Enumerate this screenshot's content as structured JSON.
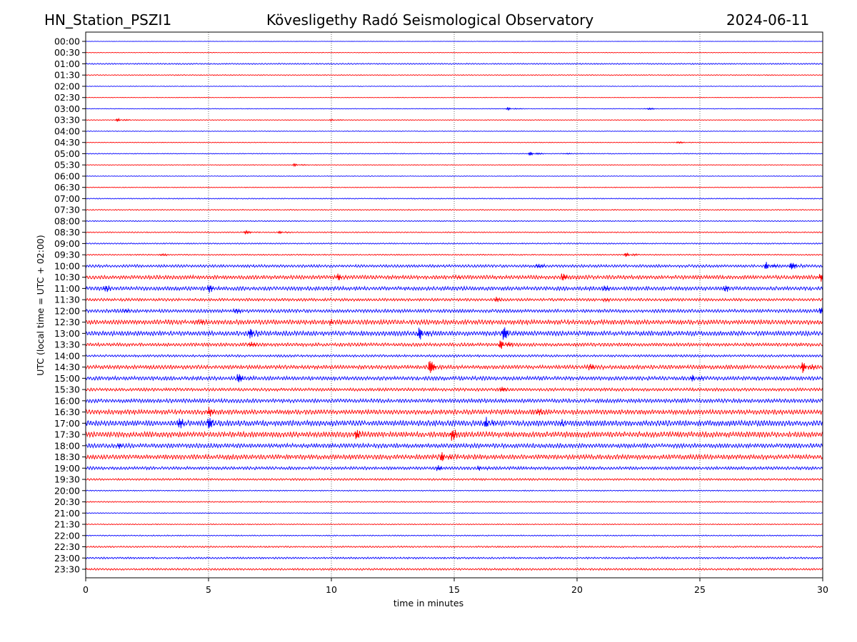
{
  "header": {
    "station": "HN_Station_PSZI1",
    "observatory": "Kövesligethy Radó Seismological Observatory",
    "date": "2024-06-11"
  },
  "chart_data": {
    "type": "line",
    "subtype": "helicorder",
    "xlabel": "time in minutes",
    "ylabel": "UTC (local time = UTC + 02:00)",
    "xlim": [
      0,
      30
    ],
    "x_ticks": [
      "0",
      "5",
      "10",
      "15",
      "20",
      "25",
      "30"
    ],
    "grid": "vertical dotted at 5-minute ticks",
    "colors": [
      "#0000ff",
      "#ff0000"
    ],
    "rows": [
      "00:00",
      "00:30",
      "01:00",
      "01:30",
      "02:00",
      "02:30",
      "03:00",
      "03:30",
      "04:00",
      "04:30",
      "05:00",
      "05:30",
      "06:00",
      "06:30",
      "07:00",
      "07:30",
      "08:00",
      "08:30",
      "09:00",
      "09:30",
      "10:00",
      "10:30",
      "11:00",
      "11:30",
      "12:00",
      "12:30",
      "13:00",
      "13:30",
      "14:00",
      "14:30",
      "15:00",
      "15:30",
      "16:00",
      "16:30",
      "17:00",
      "17:30",
      "18:00",
      "18:30",
      "19:00",
      "19:30",
      "20:00",
      "20:30",
      "21:00",
      "21:30",
      "22:00",
      "22:30",
      "23:00",
      "23:30"
    ],
    "noise_level": [
      0.2,
      0.3,
      0.8,
      0.6,
      0.4,
      0.3,
      0.4,
      0.5,
      0.4,
      0.4,
      0.5,
      0.4,
      0.4,
      0.5,
      0.6,
      0.7,
      0.6,
      0.7,
      0.8,
      0.8,
      1.8,
      2.5,
      2.5,
      1.8,
      2.2,
      3,
      3,
      2.2,
      1.5,
      2.5,
      2.5,
      2,
      2.5,
      3,
      3.5,
      3.5,
      2.8,
      3,
      2,
      1.3,
      0.7,
      0.7,
      0.5,
      0.6,
      0.7,
      1,
      1.2,
      1.3
    ],
    "events": [
      {
        "row": "03:00",
        "minute": 17.2,
        "amplitude": 3
      },
      {
        "row": "03:00",
        "minute": 22.8,
        "amplitude": 3
      },
      {
        "row": "03:30",
        "minute": 1.3,
        "amplitude": 4
      },
      {
        "row": "03:30",
        "minute": 10,
        "amplitude": 2
      },
      {
        "row": "04:30",
        "minute": 24,
        "amplitude": 3
      },
      {
        "row": "05:00",
        "minute": 18.1,
        "amplitude": 5
      },
      {
        "row": "05:00",
        "minute": 19.5,
        "amplitude": 2
      },
      {
        "row": "05:30",
        "minute": 8.5,
        "amplitude": 3
      },
      {
        "row": "08:30",
        "minute": 6.5,
        "amplitude": 3
      },
      {
        "row": "08:30",
        "minute": 7.9,
        "amplitude": 3
      },
      {
        "row": "09:30",
        "minute": 3,
        "amplitude": 3
      },
      {
        "row": "09:30",
        "minute": 22,
        "amplitude": 5
      },
      {
        "row": "10:00",
        "minute": 18.3,
        "amplitude": 6
      },
      {
        "row": "10:00",
        "minute": 27.7,
        "amplitude": 10
      },
      {
        "row": "10:00",
        "minute": 28.7,
        "amplitude": 8
      },
      {
        "row": "10:30",
        "minute": 10.3,
        "amplitude": 8
      },
      {
        "row": "10:30",
        "minute": 15,
        "amplitude": 5
      },
      {
        "row": "10:30",
        "minute": 19.4,
        "amplitude": 8
      },
      {
        "row": "10:30",
        "minute": 29.9,
        "amplitude": 8
      },
      {
        "row": "11:00",
        "minute": 0.8,
        "amplitude": 6
      },
      {
        "row": "11:00",
        "minute": 5,
        "amplitude": 8
      },
      {
        "row": "11:00",
        "minute": 21,
        "amplitude": 6
      },
      {
        "row": "11:00",
        "minute": 26,
        "amplitude": 6
      },
      {
        "row": "11:30",
        "minute": 16.7,
        "amplitude": 5
      },
      {
        "row": "11:30",
        "minute": 21,
        "amplitude": 5
      },
      {
        "row": "12:00",
        "minute": 1.5,
        "amplitude": 6
      },
      {
        "row": "12:00",
        "minute": 6,
        "amplitude": 8
      },
      {
        "row": "12:00",
        "minute": 29.9,
        "amplitude": 8
      },
      {
        "row": "12:30",
        "minute": 4.5,
        "amplitude": 8
      },
      {
        "row": "12:30",
        "minute": 10,
        "amplitude": 7
      },
      {
        "row": "13:00",
        "minute": 6.7,
        "amplitude": 12
      },
      {
        "row": "13:00",
        "minute": 13.6,
        "amplitude": 15
      },
      {
        "row": "13:00",
        "minute": 17,
        "amplitude": 15
      },
      {
        "row": "13:30",
        "minute": 6.6,
        "amplitude": 8
      },
      {
        "row": "13:30",
        "minute": 16.9,
        "amplitude": 12
      },
      {
        "row": "14:30",
        "minute": 14,
        "amplitude": 15
      },
      {
        "row": "14:30",
        "minute": 20.4,
        "amplitude": 10
      },
      {
        "row": "14:30",
        "minute": 29.2,
        "amplitude": 15
      },
      {
        "row": "15:00",
        "minute": 6.2,
        "amplitude": 10
      },
      {
        "row": "15:00",
        "minute": 24.7,
        "amplitude": 8
      },
      {
        "row": "15:30",
        "minute": 16.8,
        "amplitude": 8
      },
      {
        "row": "16:30",
        "minute": 5,
        "amplitude": 8
      },
      {
        "row": "16:30",
        "minute": 18.3,
        "amplitude": 10
      },
      {
        "row": "17:00",
        "minute": 3.8,
        "amplitude": 10
      },
      {
        "row": "17:00",
        "minute": 5,
        "amplitude": 12
      },
      {
        "row": "17:00",
        "minute": 16.3,
        "amplitude": 12
      },
      {
        "row": "17:00",
        "minute": 19.2,
        "amplitude": 8
      },
      {
        "row": "17:30",
        "minute": 11,
        "amplitude": 10
      },
      {
        "row": "17:30",
        "minute": 14.9,
        "amplitude": 12
      },
      {
        "row": "18:00",
        "minute": 1.2,
        "amplitude": 8
      },
      {
        "row": "18:30",
        "minute": 14.5,
        "amplitude": 12
      },
      {
        "row": "19:00",
        "minute": 14.3,
        "amplitude": 5
      },
      {
        "row": "19:00",
        "minute": 16,
        "amplitude": 5
      }
    ]
  }
}
